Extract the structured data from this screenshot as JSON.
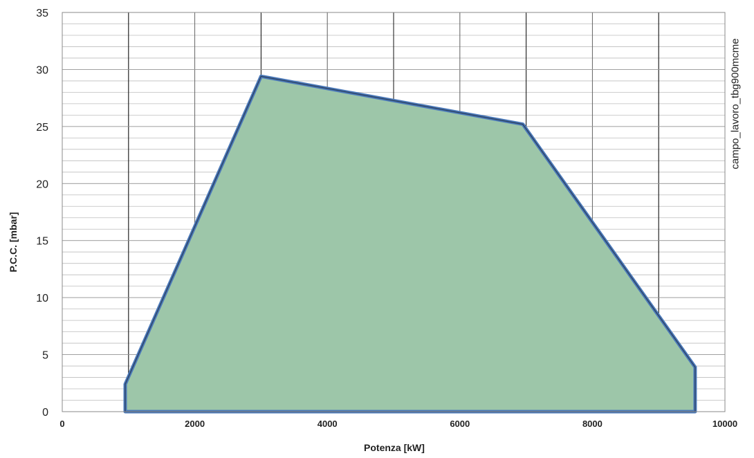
{
  "chart_data": {
    "type": "area",
    "title": "",
    "xlabel": "Potenza [kW]",
    "ylabel": "P.C.C. [mbar]",
    "xlim": [
      0,
      10000
    ],
    "ylim": [
      0,
      35
    ],
    "x_ticks": [
      0,
      2000,
      4000,
      6000,
      8000,
      10000
    ],
    "y_ticks": [
      0,
      5,
      10,
      15,
      20,
      25,
      30,
      35
    ],
    "grid": true,
    "legend": "none",
    "series": [
      {
        "x": [
          950,
          950,
          3000,
          6950,
          9550,
          9550,
          950
        ],
        "y": [
          0,
          2.4,
          29.4,
          25.2,
          3.9,
          0,
          0
        ]
      }
    ],
    "fill_color": "#9dc6a9",
    "line_color": "#4a78b8",
    "annotation": "campo_lavoro_tbg900mcme"
  }
}
